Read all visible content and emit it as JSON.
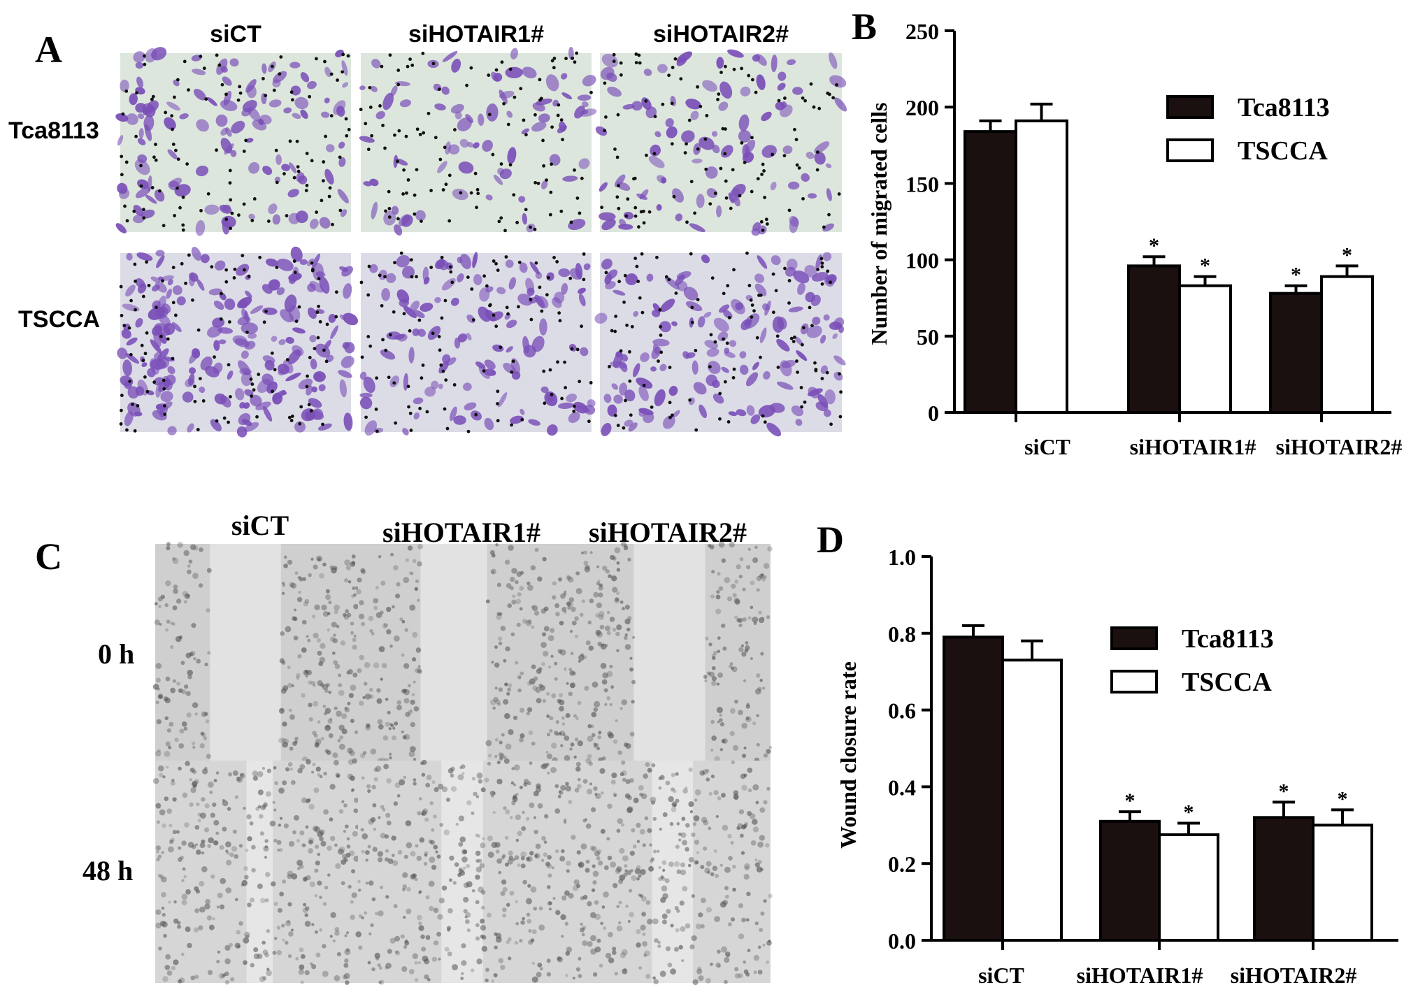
{
  "panel_a": {
    "letter": "A",
    "columns": [
      "siCT",
      "siHOTAIR1#",
      "siHOTAIR2#"
    ],
    "rows": [
      "Tca8113",
      "TSCCA"
    ]
  },
  "panel_c": {
    "letter": "C",
    "columns": [
      "siCT",
      "siHOTAIR1#",
      "siHOTAIR2#"
    ],
    "rows": [
      "0 h",
      "48 h"
    ]
  },
  "colors": {
    "bar_tca8113": "#1a1010",
    "bar_tscca": "#ffffff",
    "transwell_cells": "#7a4fb8",
    "transwell_bg": "#dde6dd",
    "wound_bg": "#c8c8c8"
  },
  "chart_data": [
    {
      "panel": "B",
      "type": "bar",
      "categories": [
        "siCT",
        "siHOTAIR1#",
        "siHOTAIR2#"
      ],
      "series": [
        {
          "name": "Tca8113",
          "values": [
            184,
            96,
            78
          ],
          "errors": [
            7,
            6,
            5
          ],
          "significant": [
            false,
            true,
            true
          ]
        },
        {
          "name": "TSCCA",
          "values": [
            191,
            83,
            89
          ],
          "errors": [
            11,
            6,
            7
          ],
          "significant": [
            false,
            true,
            true
          ]
        }
      ],
      "ylabel": "Number of migrated cells",
      "ylim": [
        0,
        250
      ],
      "yticks": [
        0,
        50,
        100,
        150,
        200,
        250
      ],
      "legend": "top-right",
      "significance_marker": "*"
    },
    {
      "panel": "D",
      "type": "bar",
      "categories": [
        "siCT",
        "siHOTAIR1#",
        "siHOTAIR2#"
      ],
      "series": [
        {
          "name": "Tca8113",
          "values": [
            0.79,
            0.31,
            0.32
          ],
          "errors": [
            0.03,
            0.025,
            0.04
          ],
          "significant": [
            false,
            true,
            true
          ]
        },
        {
          "name": "TSCCA",
          "values": [
            0.73,
            0.275,
            0.3
          ],
          "errors": [
            0.05,
            0.03,
            0.04
          ],
          "significant": [
            false,
            true,
            true
          ]
        }
      ],
      "ylabel": "Wound closure rate",
      "ylim": [
        0,
        1.0
      ],
      "yticks": [
        "0.0",
        "0.2",
        "0.4",
        "0.6",
        "0.8",
        "1.0"
      ],
      "legend": "top-right",
      "significance_marker": "*"
    }
  ]
}
